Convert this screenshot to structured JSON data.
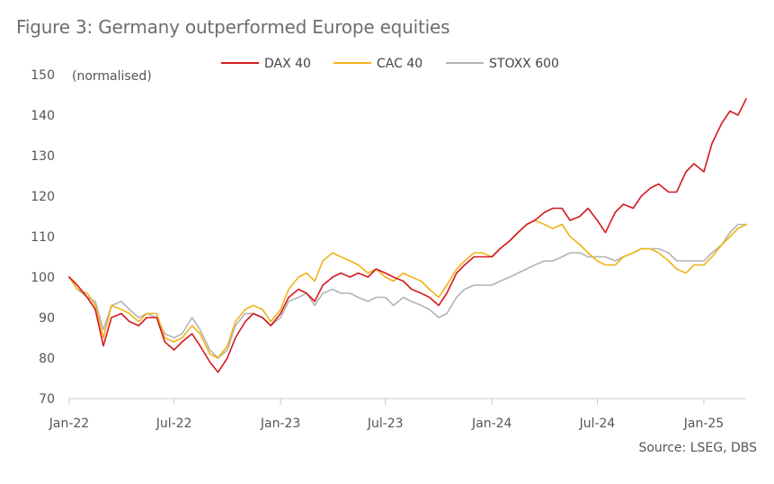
{
  "chart_data": {
    "type": "line",
    "title": "Figure 3: Germany outperformed Europe equities",
    "ylabel": "(normalised)",
    "source": "Source: LSEG, DBS",
    "ylim": [
      70,
      150
    ],
    "yticks": [
      70,
      80,
      90,
      100,
      110,
      120,
      130,
      140,
      150
    ],
    "xlim": [
      "2022-01-01",
      "2025-03-15"
    ],
    "xticks": [
      {
        "date": "2022-01-01",
        "label": "Jan-22"
      },
      {
        "date": "2022-07-01",
        "label": "Jul-22"
      },
      {
        "date": "2023-01-01",
        "label": "Jan-23"
      },
      {
        "date": "2023-07-01",
        "label": "Jul-23"
      },
      {
        "date": "2024-01-01",
        "label": "Jan-24"
      },
      {
        "date": "2024-07-01",
        "label": "Jul-24"
      },
      {
        "date": "2025-01-01",
        "label": "Jan-25"
      }
    ],
    "grid": false,
    "legend": "top",
    "x": [
      "2022-01-01",
      "2022-01-15",
      "2022-02-01",
      "2022-02-15",
      "2022-03-01",
      "2022-03-15",
      "2022-04-01",
      "2022-04-15",
      "2022-05-01",
      "2022-05-15",
      "2022-06-01",
      "2022-06-15",
      "2022-07-01",
      "2022-07-15",
      "2022-08-01",
      "2022-08-15",
      "2022-09-01",
      "2022-09-15",
      "2022-10-01",
      "2022-10-15",
      "2022-11-01",
      "2022-11-15",
      "2022-12-01",
      "2022-12-15",
      "2023-01-01",
      "2023-01-15",
      "2023-02-01",
      "2023-02-15",
      "2023-03-01",
      "2023-03-15",
      "2023-04-01",
      "2023-04-15",
      "2023-05-01",
      "2023-05-15",
      "2023-06-01",
      "2023-06-15",
      "2023-07-01",
      "2023-07-15",
      "2023-08-01",
      "2023-08-15",
      "2023-09-01",
      "2023-09-15",
      "2023-10-01",
      "2023-10-15",
      "2023-11-01",
      "2023-11-15",
      "2023-12-01",
      "2023-12-15",
      "2024-01-01",
      "2024-01-15",
      "2024-02-01",
      "2024-02-15",
      "2024-03-01",
      "2024-03-15",
      "2024-04-01",
      "2024-04-15",
      "2024-05-01",
      "2024-05-15",
      "2024-06-01",
      "2024-06-15",
      "2024-07-01",
      "2024-07-15",
      "2024-08-01",
      "2024-08-15",
      "2024-09-01",
      "2024-09-15",
      "2024-10-01",
      "2024-10-15",
      "2024-11-01",
      "2024-11-15",
      "2024-12-01",
      "2024-12-15",
      "2025-01-01",
      "2025-01-15",
      "2025-02-01",
      "2025-02-15",
      "2025-03-01",
      "2025-03-15"
    ],
    "series": [
      {
        "name": "DAX 40",
        "color": "#d71920",
        "values": [
          100,
          98,
          95,
          92,
          83,
          90,
          91,
          89,
          88,
          90,
          90,
          84,
          82,
          84,
          86,
          83,
          79,
          76.5,
          80,
          85,
          89,
          91,
          90,
          88,
          91,
          95,
          97,
          96,
          94,
          98,
          100,
          101,
          100,
          101,
          100,
          102,
          101,
          100,
          99,
          97,
          96,
          95,
          93,
          96,
          101,
          103,
          105,
          105,
          105,
          107,
          109,
          111,
          113,
          114,
          116,
          117,
          117,
          114,
          115,
          117,
          114,
          111,
          116,
          118,
          117,
          120,
          122,
          123,
          121,
          121,
          126,
          128,
          126,
          133,
          138,
          141,
          140,
          144
        ]
      },
      {
        "name": "CAC 40",
        "color": "#f0b418",
        "values": [
          100,
          97,
          96,
          93,
          85,
          93,
          92,
          91,
          89,
          91,
          91,
          85,
          84,
          85,
          88,
          86,
          81,
          80,
          83,
          89,
          92,
          93,
          92,
          89,
          92,
          97,
          100,
          101,
          99,
          104,
          106,
          105,
          104,
          103,
          101,
          102,
          100,
          99,
          101,
          100,
          99,
          97,
          95,
          98,
          102,
          104,
          106,
          106,
          105,
          107,
          109,
          111,
          113,
          114,
          113,
          112,
          113,
          110,
          108,
          106,
          104,
          103,
          103,
          105,
          106,
          107,
          107,
          106,
          104,
          102,
          101,
          103,
          103,
          105,
          108,
          110,
          112,
          113
        ]
      },
      {
        "name": "STOXX 600",
        "color": "#b4b4b4",
        "values": [
          100,
          97,
          95,
          94,
          87,
          93,
          94,
          92,
          90,
          91,
          90,
          86,
          85,
          86,
          90,
          87,
          82,
          80,
          82,
          88,
          91,
          91,
          90,
          88,
          90,
          94,
          95,
          96,
          93,
          96,
          97,
          96,
          96,
          95,
          94,
          95,
          95,
          93,
          95,
          94,
          93,
          92,
          90,
          91,
          95,
          97,
          98,
          98,
          98,
          99,
          100,
          101,
          102,
          103,
          104,
          104,
          105,
          106,
          106,
          105,
          105,
          105,
          104,
          105,
          106,
          107,
          107,
          107,
          106,
          104,
          104,
          104,
          104,
          106,
          108,
          111,
          113,
          113
        ]
      }
    ]
  }
}
